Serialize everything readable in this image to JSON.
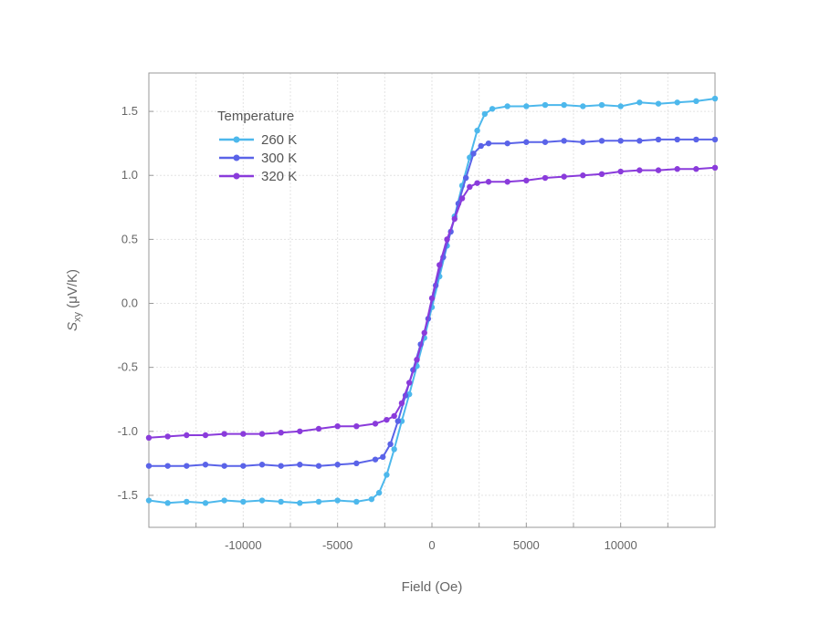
{
  "chart_data": {
    "type": "line",
    "xlabel": "Field (Oe)",
    "ylabel_main": "S",
    "ylabel_sub": "xy",
    "ylabel_unit": " (μV/K)",
    "xlim": [
      -15000,
      15000
    ],
    "ylim": [
      -1.75,
      1.8
    ],
    "x_ticks": [
      -10000,
      -5000,
      0,
      5000,
      10000
    ],
    "x_tick_labels": [
      "-10000",
      "-5000",
      "0",
      "5000",
      "10000"
    ],
    "x_minor_step": 2500,
    "y_ticks": [
      -1.5,
      -1.0,
      -0.5,
      0.0,
      0.5,
      1.0,
      1.5
    ],
    "y_tick_labels": [
      "-1.5",
      "-1.0",
      "-0.5",
      "0.0",
      "0.5",
      "1.0",
      "1.5"
    ],
    "grid": true,
    "legend_title": "Temperature",
    "legend_position": "top-left",
    "series": [
      {
        "name": "260 K",
        "color": "#4db8ec",
        "points": [
          [
            -15000,
            -1.54
          ],
          [
            -14000,
            -1.56
          ],
          [
            -13000,
            -1.55
          ],
          [
            -12000,
            -1.56
          ],
          [
            -11000,
            -1.54
          ],
          [
            -10000,
            -1.55
          ],
          [
            -9000,
            -1.54
          ],
          [
            -8000,
            -1.55
          ],
          [
            -7000,
            -1.56
          ],
          [
            -6000,
            -1.55
          ],
          [
            -5000,
            -1.54
          ],
          [
            -4000,
            -1.55
          ],
          [
            -3200,
            -1.53
          ],
          [
            -2800,
            -1.48
          ],
          [
            -2400,
            -1.34
          ],
          [
            -2000,
            -1.14
          ],
          [
            -1600,
            -0.92
          ],
          [
            -1200,
            -0.71
          ],
          [
            -800,
            -0.49
          ],
          [
            -400,
            -0.27
          ],
          [
            0,
            -0.03
          ],
          [
            400,
            0.21
          ],
          [
            800,
            0.45
          ],
          [
            1200,
            0.68
          ],
          [
            1600,
            0.92
          ],
          [
            2000,
            1.14
          ],
          [
            2400,
            1.35
          ],
          [
            2800,
            1.48
          ],
          [
            3200,
            1.52
          ],
          [
            4000,
            1.54
          ],
          [
            5000,
            1.54
          ],
          [
            6000,
            1.55
          ],
          [
            7000,
            1.55
          ],
          [
            8000,
            1.54
          ],
          [
            9000,
            1.55
          ],
          [
            10000,
            1.54
          ],
          [
            11000,
            1.57
          ],
          [
            12000,
            1.56
          ],
          [
            13000,
            1.57
          ],
          [
            14000,
            1.58
          ],
          [
            15000,
            1.6
          ]
        ]
      },
      {
        "name": "300 K",
        "color": "#5a63e8",
        "points": [
          [
            -15000,
            -1.27
          ],
          [
            -14000,
            -1.27
          ],
          [
            -13000,
            -1.27
          ],
          [
            -12000,
            -1.26
          ],
          [
            -11000,
            -1.27
          ],
          [
            -10000,
            -1.27
          ],
          [
            -9000,
            -1.26
          ],
          [
            -8000,
            -1.27
          ],
          [
            -7000,
            -1.26
          ],
          [
            -6000,
            -1.27
          ],
          [
            -5000,
            -1.26
          ],
          [
            -4000,
            -1.25
          ],
          [
            -3000,
            -1.22
          ],
          [
            -2600,
            -1.2
          ],
          [
            -2200,
            -1.1
          ],
          [
            -1800,
            -0.92
          ],
          [
            -1400,
            -0.72
          ],
          [
            -1000,
            -0.52
          ],
          [
            -600,
            -0.32
          ],
          [
            -200,
            -0.12
          ],
          [
            200,
            0.14
          ],
          [
            600,
            0.36
          ],
          [
            1000,
            0.56
          ],
          [
            1400,
            0.78
          ],
          [
            1800,
            0.98
          ],
          [
            2200,
            1.17
          ],
          [
            2600,
            1.23
          ],
          [
            3000,
            1.25
          ],
          [
            4000,
            1.25
          ],
          [
            5000,
            1.26
          ],
          [
            6000,
            1.26
          ],
          [
            7000,
            1.27
          ],
          [
            8000,
            1.26
          ],
          [
            9000,
            1.27
          ],
          [
            10000,
            1.27
          ],
          [
            11000,
            1.27
          ],
          [
            12000,
            1.28
          ],
          [
            13000,
            1.28
          ],
          [
            14000,
            1.28
          ],
          [
            15000,
            1.28
          ]
        ]
      },
      {
        "name": "320 K",
        "color": "#8a3bdb",
        "points": [
          [
            -15000,
            -1.05
          ],
          [
            -14000,
            -1.04
          ],
          [
            -13000,
            -1.03
          ],
          [
            -12000,
            -1.03
          ],
          [
            -11000,
            -1.02
          ],
          [
            -10000,
            -1.02
          ],
          [
            -9000,
            -1.02
          ],
          [
            -8000,
            -1.01
          ],
          [
            -7000,
            -1.0
          ],
          [
            -6000,
            -0.98
          ],
          [
            -5000,
            -0.96
          ],
          [
            -4000,
            -0.96
          ],
          [
            -3000,
            -0.94
          ],
          [
            -2400,
            -0.91
          ],
          [
            -2000,
            -0.88
          ],
          [
            -1600,
            -0.78
          ],
          [
            -1200,
            -0.62
          ],
          [
            -800,
            -0.44
          ],
          [
            -400,
            -0.23
          ],
          [
            0,
            0.04
          ],
          [
            400,
            0.3
          ],
          [
            800,
            0.5
          ],
          [
            1200,
            0.66
          ],
          [
            1600,
            0.82
          ],
          [
            2000,
            0.91
          ],
          [
            2400,
            0.94
          ],
          [
            3000,
            0.95
          ],
          [
            4000,
            0.95
          ],
          [
            5000,
            0.96
          ],
          [
            6000,
            0.98
          ],
          [
            7000,
            0.99
          ],
          [
            8000,
            1.0
          ],
          [
            9000,
            1.01
          ],
          [
            10000,
            1.03
          ],
          [
            11000,
            1.04
          ],
          [
            12000,
            1.04
          ],
          [
            13000,
            1.05
          ],
          [
            14000,
            1.05
          ],
          [
            15000,
            1.06
          ]
        ]
      }
    ]
  }
}
